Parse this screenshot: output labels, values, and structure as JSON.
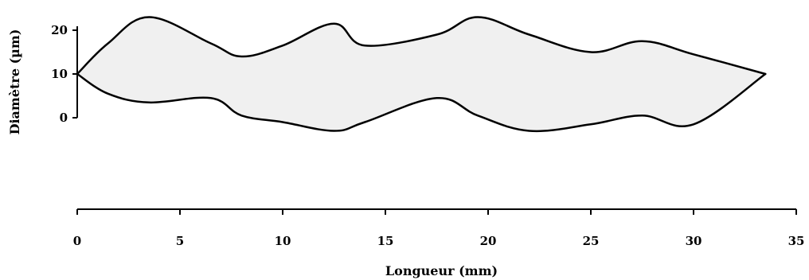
{
  "chart_data": {
    "type": "area",
    "xlabel": "Longueur (mm)",
    "ylabel": "Diamètre (µm)",
    "xlim": [
      0,
      35
    ],
    "ylim": [
      0,
      20
    ],
    "x_ticks": [
      0,
      5,
      10,
      15,
      20,
      25,
      30,
      35
    ],
    "y_ticks": [
      0,
      10,
      20
    ],
    "grid": false,
    "series": [
      {
        "values_upper": [
          [
            0,
            10
          ],
          [
            1.5,
            17
          ],
          [
            3.5,
            23
          ],
          [
            6.5,
            17
          ],
          [
            8,
            14
          ],
          [
            10,
            16.5
          ],
          [
            12.5,
            21.5
          ],
          [
            14,
            16.5
          ],
          [
            17.5,
            19
          ],
          [
            19.5,
            23
          ],
          [
            22,
            19
          ],
          [
            25,
            15
          ],
          [
            27.5,
            17.5
          ],
          [
            30,
            14.5
          ],
          [
            33.5,
            10
          ]
        ],
        "values_lower": [
          [
            0,
            10
          ],
          [
            1.5,
            5.5
          ],
          [
            3.5,
            3.5
          ],
          [
            6.5,
            4.5
          ],
          [
            8,
            0.5
          ],
          [
            10,
            -1
          ],
          [
            12.5,
            -3
          ],
          [
            14,
            -1
          ],
          [
            17.5,
            4.5
          ],
          [
            19.5,
            0.5
          ],
          [
            22,
            -3
          ],
          [
            25,
            -1.5
          ],
          [
            27.5,
            0.5
          ],
          [
            30,
            -1.5
          ],
          [
            33.5,
            10
          ]
        ]
      }
    ]
  }
}
